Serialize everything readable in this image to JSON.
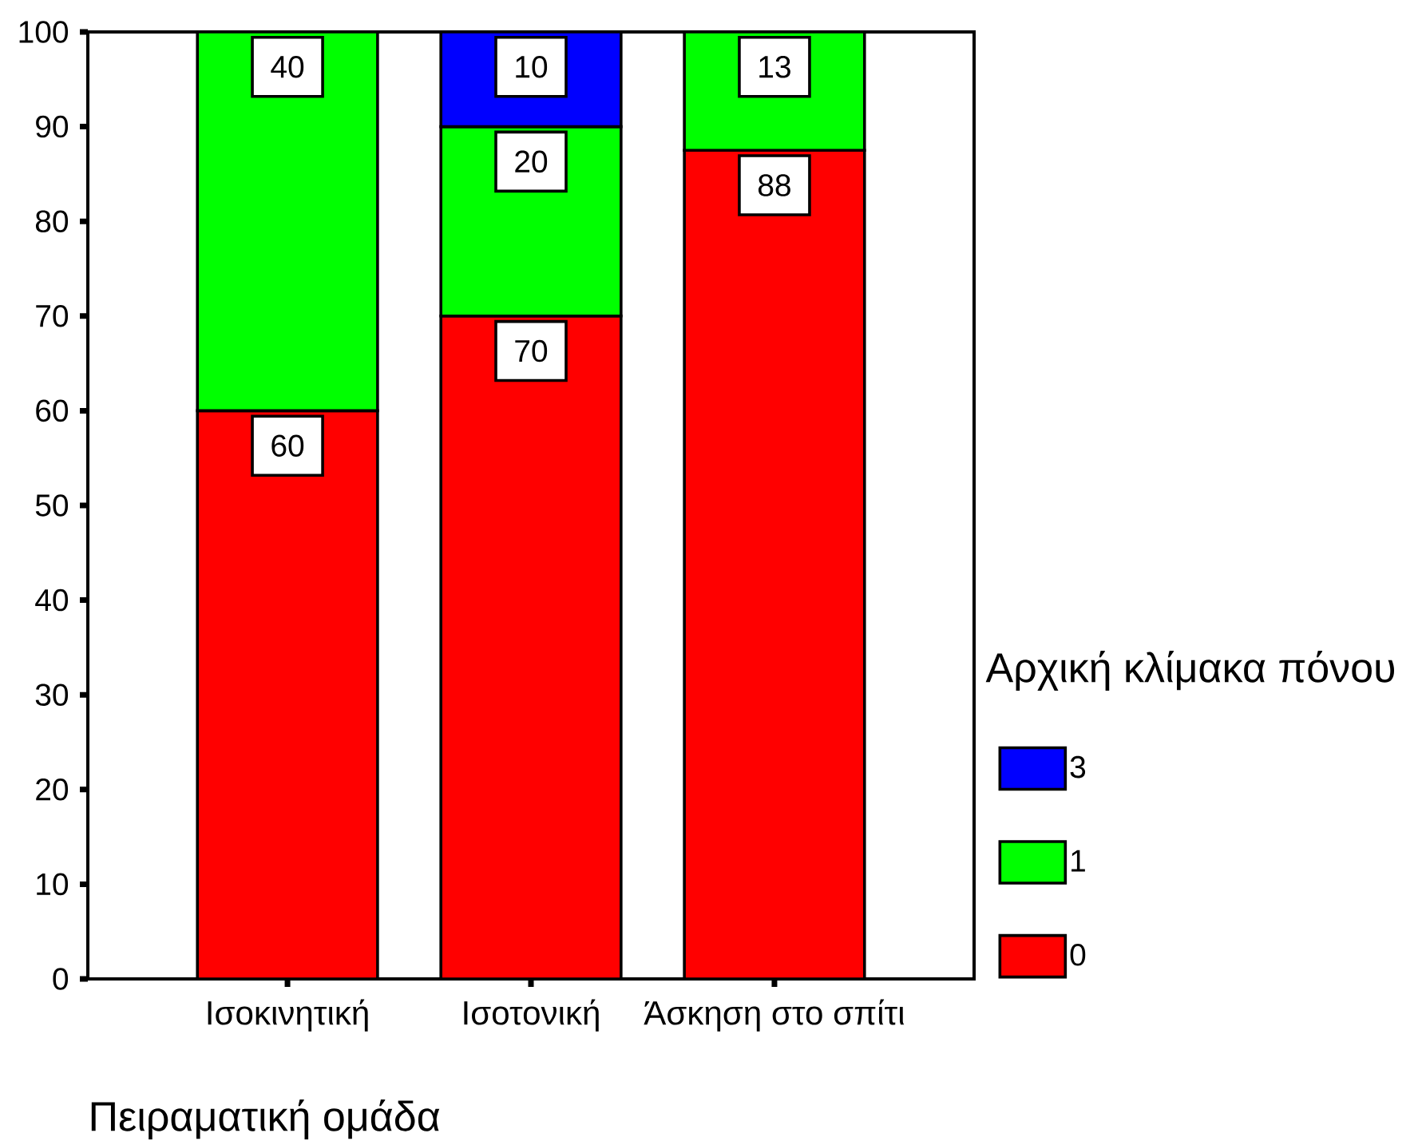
{
  "chart_data": {
    "type": "bar",
    "stacked": true,
    "xlabel": "Πειραματική ομάδα",
    "legend_title": "Αρχική κλίμακα πόνου",
    "categories": [
      "Ισοκινητική",
      "Ισοτονική",
      "Άσκηση στο σπίτι"
    ],
    "series": [
      {
        "name": "0",
        "color": "#ff0000",
        "values": [
          60,
          70,
          87.5
        ],
        "value_labels": [
          "60",
          "70",
          "88"
        ]
      },
      {
        "name": "1",
        "color": "#00ff00",
        "values": [
          40,
          20,
          12.5
        ],
        "value_labels": [
          "40",
          "20",
          "13"
        ]
      },
      {
        "name": "3",
        "color": "#0000ff",
        "values": [
          null,
          10,
          null
        ],
        "value_labels": [
          null,
          "10",
          null
        ]
      }
    ],
    "ylim": [
      0,
      100
    ],
    "yticks": [
      0,
      10,
      20,
      30,
      40,
      50,
      60,
      70,
      80,
      90,
      100
    ],
    "legend": "right"
  }
}
